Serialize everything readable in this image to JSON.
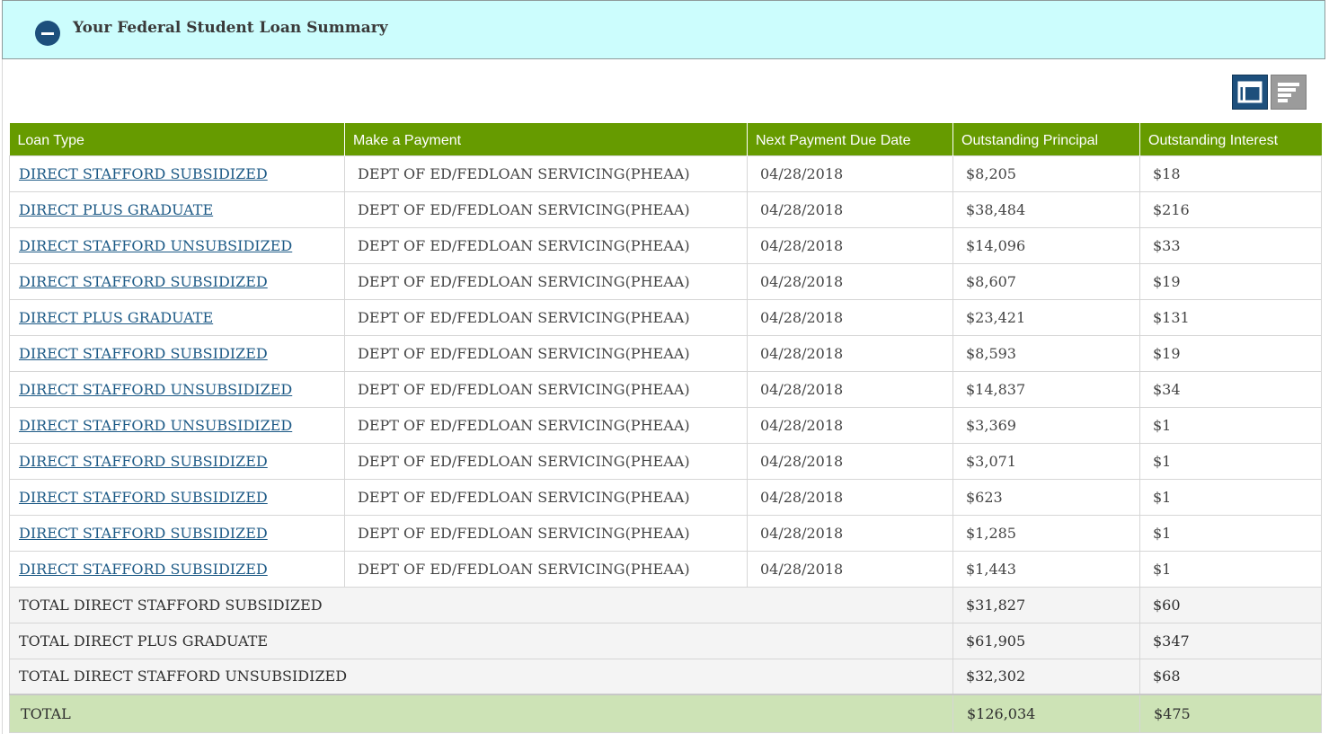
{
  "panel": {
    "title": "Your Federal Student Loan Summary"
  },
  "view_toggle": {
    "table_icon": "table-view-icon",
    "list_icon": "list-view-icon"
  },
  "table": {
    "headers": [
      "Loan Type",
      "Make a Payment",
      "Next Payment Due Date",
      "Outstanding Principal",
      "Outstanding Interest"
    ],
    "rows": [
      {
        "loan_type": "DIRECT STAFFORD SUBSIDIZED",
        "servicer": "DEPT OF ED/FEDLOAN SERVICING(PHEAA)",
        "due_date": "04/28/2018",
        "principal": "$8,205",
        "interest": "$18"
      },
      {
        "loan_type": "DIRECT PLUS GRADUATE",
        "servicer": "DEPT OF ED/FEDLOAN SERVICING(PHEAA)",
        "due_date": "04/28/2018",
        "principal": "$38,484",
        "interest": "$216"
      },
      {
        "loan_type": "DIRECT STAFFORD UNSUBSIDIZED",
        "servicer": "DEPT OF ED/FEDLOAN SERVICING(PHEAA)",
        "due_date": "04/28/2018",
        "principal": "$14,096",
        "interest": "$33"
      },
      {
        "loan_type": "DIRECT STAFFORD SUBSIDIZED",
        "servicer": "DEPT OF ED/FEDLOAN SERVICING(PHEAA)",
        "due_date": "04/28/2018",
        "principal": "$8,607",
        "interest": "$19"
      },
      {
        "loan_type": "DIRECT PLUS GRADUATE",
        "servicer": "DEPT OF ED/FEDLOAN SERVICING(PHEAA)",
        "due_date": "04/28/2018",
        "principal": "$23,421",
        "interest": "$131"
      },
      {
        "loan_type": "DIRECT STAFFORD SUBSIDIZED",
        "servicer": "DEPT OF ED/FEDLOAN SERVICING(PHEAA)",
        "due_date": "04/28/2018",
        "principal": "$8,593",
        "interest": "$19"
      },
      {
        "loan_type": "DIRECT STAFFORD UNSUBSIDIZED",
        "servicer": "DEPT OF ED/FEDLOAN SERVICING(PHEAA)",
        "due_date": "04/28/2018",
        "principal": "$14,837",
        "interest": "$34"
      },
      {
        "loan_type": "DIRECT STAFFORD UNSUBSIDIZED",
        "servicer": "DEPT OF ED/FEDLOAN SERVICING(PHEAA)",
        "due_date": "04/28/2018",
        "principal": "$3,369",
        "interest": "$1"
      },
      {
        "loan_type": "DIRECT STAFFORD SUBSIDIZED",
        "servicer": "DEPT OF ED/FEDLOAN SERVICING(PHEAA)",
        "due_date": "04/28/2018",
        "principal": "$3,071",
        "interest": "$1"
      },
      {
        "loan_type": "DIRECT STAFFORD SUBSIDIZED",
        "servicer": "DEPT OF ED/FEDLOAN SERVICING(PHEAA)",
        "due_date": "04/28/2018",
        "principal": "$623",
        "interest": "$1"
      },
      {
        "loan_type": "DIRECT STAFFORD SUBSIDIZED",
        "servicer": "DEPT OF ED/FEDLOAN SERVICING(PHEAA)",
        "due_date": "04/28/2018",
        "principal": "$1,285",
        "interest": "$1"
      },
      {
        "loan_type": "DIRECT STAFFORD SUBSIDIZED",
        "servicer": "DEPT OF ED/FEDLOAN SERVICING(PHEAA)",
        "due_date": "04/28/2018",
        "principal": "$1,443",
        "interest": "$1"
      }
    ],
    "subtotals": [
      {
        "label": "TOTAL DIRECT STAFFORD SUBSIDIZED",
        "principal": "$31,827",
        "interest": "$60"
      },
      {
        "label": "TOTAL DIRECT PLUS GRADUATE",
        "principal": "$61,905",
        "interest": "$347"
      },
      {
        "label": "TOTAL DIRECT STAFFORD UNSUBSIDIZED",
        "principal": "$32,302",
        "interest": "$68"
      }
    ],
    "grand_total": {
      "label": "TOTAL",
      "principal": "$126,034",
      "interest": "$475"
    }
  },
  "colors": {
    "header_bg": "#ccfdfd",
    "table_header": "#669b00",
    "link": "#1d5a86",
    "accent_blue": "#1d4f7c",
    "grand_total_bg": "#cde3b6"
  }
}
